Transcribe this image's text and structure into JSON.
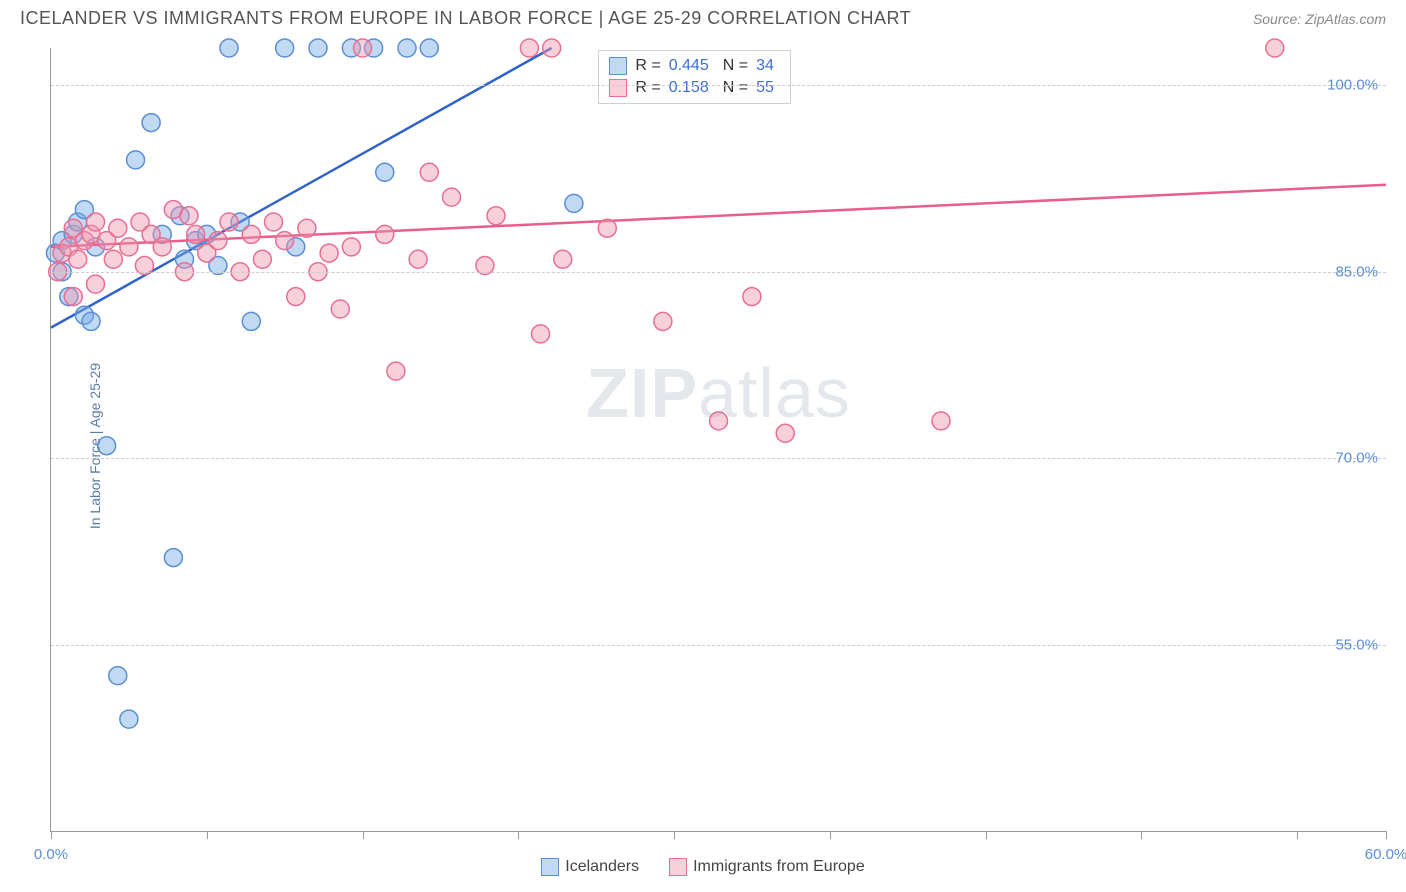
{
  "header": {
    "title": "ICELANDER VS IMMIGRANTS FROM EUROPE IN LABOR FORCE | AGE 25-29 CORRELATION CHART",
    "source_prefix": "Source: ",
    "source_name": "ZipAtlas.com"
  },
  "axes": {
    "y_label": "In Labor Force | Age 25-29",
    "x_min": 0,
    "x_max": 60,
    "y_min": 40,
    "y_max": 103,
    "y_ticks": [
      55.0,
      70.0,
      85.0,
      100.0
    ],
    "y_tick_labels": [
      "55.0%",
      "70.0%",
      "85.0%",
      "100.0%"
    ],
    "x_ticks": [
      0,
      7,
      14,
      21,
      28,
      35,
      42,
      49,
      56,
      60
    ],
    "x_start_label": "0.0%",
    "x_end_label": "60.0%",
    "grid_color": "#cccccc",
    "tick_label_color": "#5a8fd4"
  },
  "watermark": {
    "part1": "ZIP",
    "part2": "atlas"
  },
  "series": [
    {
      "id": "icelanders",
      "label": "Icelanders",
      "fill": "rgba(120,170,230,0.45)",
      "stroke": "#5a8fd4",
      "trend_color": "#2f63c9",
      "trend": {
        "x1": 0,
        "y1": 80.5,
        "x2": 22.5,
        "y2": 103
      },
      "R": "0.445",
      "N": "34",
      "points": [
        [
          0.2,
          86.5
        ],
        [
          0.5,
          85
        ],
        [
          0.5,
          87.5
        ],
        [
          0.8,
          83
        ],
        [
          1.0,
          88
        ],
        [
          1.2,
          89
        ],
        [
          1.5,
          90
        ],
        [
          1.5,
          81.5
        ],
        [
          1.8,
          81
        ],
        [
          2.0,
          87
        ],
        [
          2.5,
          71
        ],
        [
          3.0,
          52.5
        ],
        [
          3.5,
          49
        ],
        [
          3.8,
          94
        ],
        [
          4.5,
          97
        ],
        [
          5.0,
          88
        ],
        [
          5.5,
          62
        ],
        [
          5.8,
          89.5
        ],
        [
          6.0,
          86
        ],
        [
          6.5,
          87.5
        ],
        [
          7.0,
          88
        ],
        [
          7.5,
          85.5
        ],
        [
          8.0,
          103
        ],
        [
          8.5,
          89
        ],
        [
          9.0,
          81
        ],
        [
          10.5,
          103
        ],
        [
          11.0,
          87
        ],
        [
          12.0,
          103
        ],
        [
          13.5,
          103
        ],
        [
          14.5,
          103
        ],
        [
          15.0,
          93
        ],
        [
          16.0,
          103
        ],
        [
          17.0,
          103
        ],
        [
          23.5,
          90.5
        ]
      ]
    },
    {
      "id": "immigrants",
      "label": "Immigrants from Europe",
      "fill": "rgba(240,150,175,0.45)",
      "stroke": "#e86f94",
      "trend_color": "#e86089",
      "trend": {
        "x1": 0,
        "y1": 87,
        "x2": 60,
        "y2": 92
      },
      "R": "0.158",
      "N": "55",
      "points": [
        [
          0.3,
          85
        ],
        [
          0.5,
          86.5
        ],
        [
          0.8,
          87
        ],
        [
          1.0,
          83
        ],
        [
          1.0,
          88.5
        ],
        [
          1.2,
          86
        ],
        [
          1.5,
          87.5
        ],
        [
          1.8,
          88
        ],
        [
          2.0,
          84
        ],
        [
          2.0,
          89
        ],
        [
          2.5,
          87.5
        ],
        [
          2.8,
          86
        ],
        [
          3.0,
          88.5
        ],
        [
          3.5,
          87
        ],
        [
          4.0,
          89
        ],
        [
          4.2,
          85.5
        ],
        [
          4.5,
          88
        ],
        [
          5.0,
          87
        ],
        [
          5.5,
          90
        ],
        [
          6.0,
          85
        ],
        [
          6.2,
          89.5
        ],
        [
          6.5,
          88
        ],
        [
          7.0,
          86.5
        ],
        [
          7.5,
          87.5
        ],
        [
          8.0,
          89
        ],
        [
          8.5,
          85
        ],
        [
          9.0,
          88
        ],
        [
          9.5,
          86
        ],
        [
          10.0,
          89
        ],
        [
          10.5,
          87.5
        ],
        [
          11.0,
          83
        ],
        [
          11.5,
          88.5
        ],
        [
          12.0,
          85
        ],
        [
          12.5,
          86.5
        ],
        [
          13.0,
          82
        ],
        [
          13.5,
          87
        ],
        [
          14.0,
          103
        ],
        [
          15.0,
          88
        ],
        [
          15.5,
          77
        ],
        [
          16.5,
          86
        ],
        [
          17.0,
          93
        ],
        [
          18.0,
          91
        ],
        [
          19.5,
          85.5
        ],
        [
          20.0,
          89.5
        ],
        [
          21.5,
          103
        ],
        [
          22.0,
          80
        ],
        [
          22.5,
          103
        ],
        [
          23.0,
          86
        ],
        [
          25.0,
          88.5
        ],
        [
          27.5,
          81
        ],
        [
          30.0,
          73
        ],
        [
          31.5,
          83
        ],
        [
          33.0,
          72
        ],
        [
          40.0,
          73
        ],
        [
          55.0,
          103
        ]
      ]
    }
  ],
  "marker_radius": 9,
  "marker_stroke_width": 1.5,
  "stat_box": {
    "R_label": "R =",
    "N_label": "N ="
  }
}
